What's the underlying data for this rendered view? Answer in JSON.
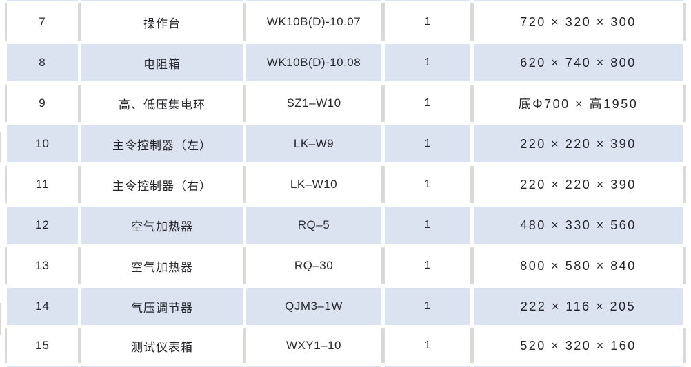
{
  "table": {
    "rows": [
      {
        "index": "7",
        "name": "操作台",
        "model": "WK10B(D)-10.07",
        "qty": "1",
        "dims": "720 × 320 × 300",
        "shaded": false
      },
      {
        "index": "8",
        "name": "电阻箱",
        "model": "WK10B(D)-10.08",
        "qty": "1",
        "dims": "620 × 740 × 800",
        "shaded": true
      },
      {
        "index": "9",
        "name": "高、低压集电环",
        "model": "SZ1–W10",
        "qty": "1",
        "dims": "底Φ700 × 高1950",
        "shaded": false
      },
      {
        "index": "10",
        "name": "主令控制器（左）",
        "model": "LK–W9",
        "qty": "1",
        "dims": "220 × 220 × 390",
        "shaded": true
      },
      {
        "index": "11",
        "name": "主令控制器（右）",
        "model": "LK–W10",
        "qty": "1",
        "dims": "220 × 220 × 390",
        "shaded": false
      },
      {
        "index": "12",
        "name": "空气加热器",
        "model": "RQ–5",
        "qty": "1",
        "dims": "480 × 330 × 560",
        "shaded": true
      },
      {
        "index": "13",
        "name": "空气加热器",
        "model": "RQ–30",
        "qty": "1",
        "dims": "800 × 580 × 840",
        "shaded": false
      },
      {
        "index": "14",
        "name": "气压调节器",
        "model": "QJM3–1W",
        "qty": "1",
        "dims": "222 × 116 × 205",
        "shaded": true
      },
      {
        "index": "15",
        "name": "测试仪表箱",
        "model": "WXY1–10",
        "qty": "1",
        "dims": "520 × 320 × 160",
        "shaded": false
      }
    ],
    "colors": {
      "shaded_row_bg": "#dbe2f0",
      "plain_row_bg": "#ffffff",
      "separator": "#d9d9d5",
      "text": "#26262a"
    }
  }
}
